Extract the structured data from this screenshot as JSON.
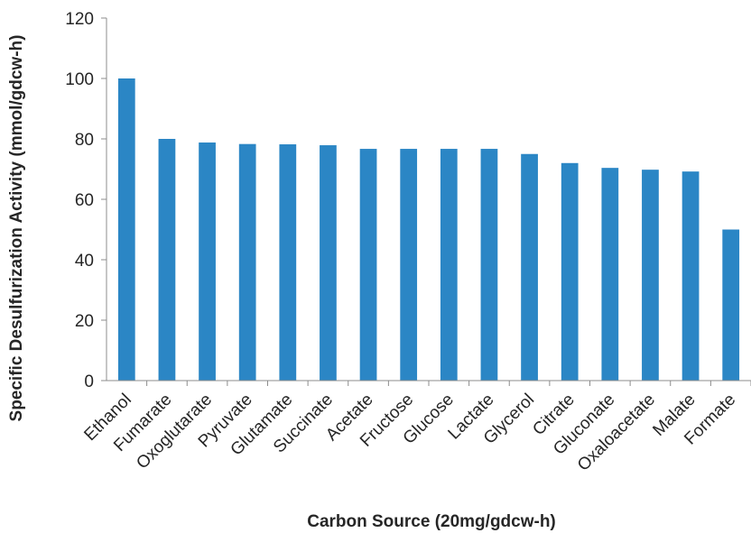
{
  "chart_data": {
    "type": "bar",
    "title": "",
    "xlabel": "Carbon Source (20mg/gdcw-h)",
    "ylabel": "Specific Desulfurization Activity (mmol/gdcw-h)",
    "ylim": [
      0,
      120
    ],
    "yticks": [
      0,
      20,
      40,
      60,
      80,
      100,
      120
    ],
    "grid": false,
    "legend": "none",
    "bar_color": "#2b86c5",
    "categories": [
      "Ethanol",
      "Fumarate",
      "Oxoglutarate",
      "Pyruvate",
      "Glutamate",
      "Succinate",
      "Acetate",
      "Fructose",
      "Glucose",
      "Lactate",
      "Glycerol",
      "Citrate",
      "Gluconate",
      "Oxaloacetate",
      "Malate",
      "Formate"
    ],
    "values": [
      100,
      80,
      78.8,
      78.3,
      78.2,
      77.9,
      76.7,
      76.7,
      76.7,
      76.7,
      75,
      72,
      70.4,
      69.8,
      69.2,
      50
    ]
  }
}
